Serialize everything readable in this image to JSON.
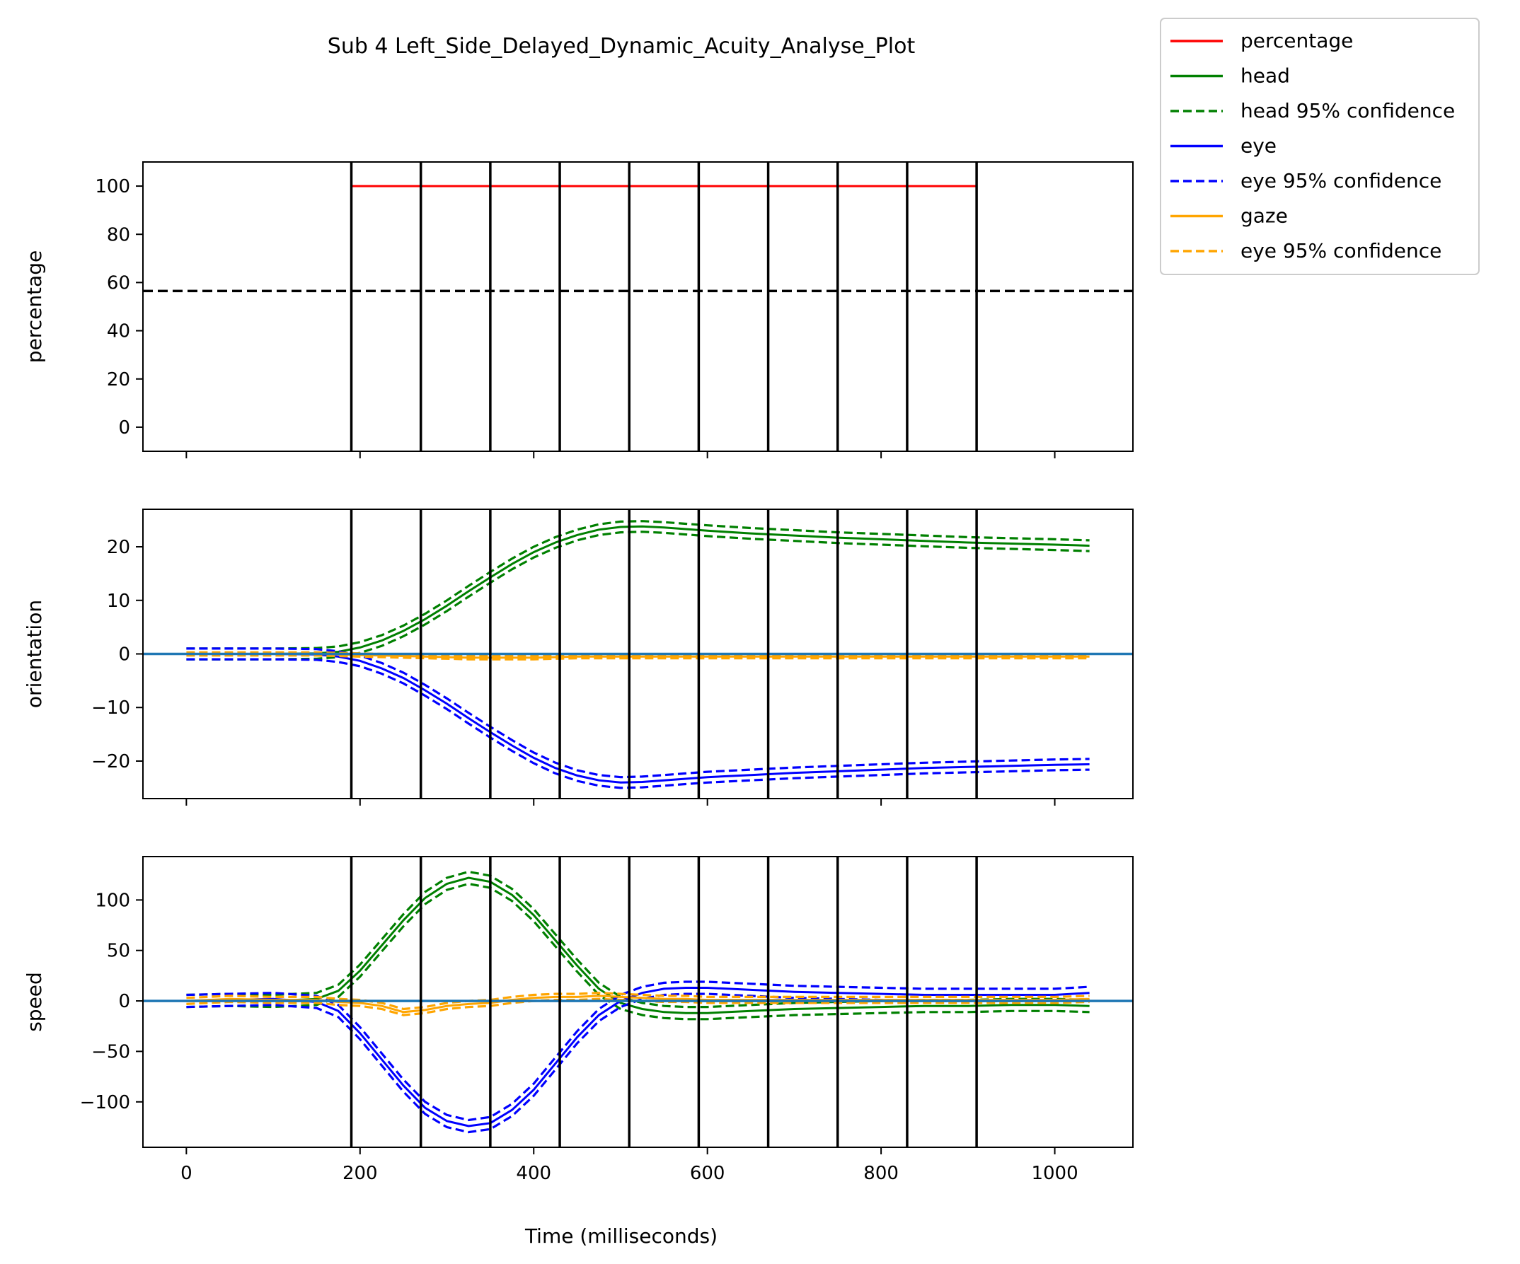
{
  "title": "Sub 4 Left_Side_Delayed_Dynamic_Acuity_Analyse_Plot",
  "xlabel": "Time (milliseconds)",
  "colors": {
    "percentage": "#ff0000",
    "head": "#008000",
    "eye": "#0000ff",
    "gaze": "#ffa500",
    "zero_line": "#1f77b4",
    "markers": "#000000"
  },
  "legend": {
    "placement": "outside-top-right",
    "entries": [
      {
        "label": "percentage",
        "color": "#ff0000",
        "style": "solid"
      },
      {
        "label": "head",
        "color": "#008000",
        "style": "solid"
      },
      {
        "label": "head 95% confidence",
        "color": "#008000",
        "style": "dashed"
      },
      {
        "label": "eye",
        "color": "#0000ff",
        "style": "solid"
      },
      {
        "label": "eye 95% confidence",
        "color": "#0000ff",
        "style": "dashed"
      },
      {
        "label": "gaze",
        "color": "#ffa500",
        "style": "solid"
      },
      {
        "label": "eye 95% confidence",
        "color": "#ffa500",
        "style": "dashed"
      }
    ]
  },
  "chart_data": [
    {
      "type": "line",
      "ylabel": "percentage",
      "xlim": [
        -50,
        1090
      ],
      "ylim": [
        -10,
        110
      ],
      "xticks": [
        0,
        200,
        400,
        600,
        800,
        1000
      ],
      "yticks": [
        0,
        20,
        40,
        60,
        80,
        100
      ],
      "ytick_labels": [
        "0",
        "20",
        "40",
        "60",
        "80",
        "100"
      ],
      "vlines": [
        190,
        270,
        350,
        430,
        510,
        590,
        670,
        750,
        830,
        910
      ],
      "hline_dashed": 56.5,
      "series": [
        {
          "name": "percentage",
          "color": "#ff0000",
          "x": [
            190,
            910
          ],
          "y": [
            100,
            100
          ]
        }
      ]
    },
    {
      "type": "line",
      "ylabel": "orientation",
      "xlim": [
        -50,
        1090
      ],
      "ylim": [
        -27,
        27
      ],
      "xticks": [
        0,
        200,
        400,
        600,
        800,
        1000
      ],
      "yticks": [
        -20,
        -10,
        0,
        10,
        20
      ],
      "ytick_labels": [
        "−20",
        "−10",
        "0",
        "10",
        "20"
      ],
      "vlines": [
        190,
        270,
        350,
        430,
        510,
        590,
        670,
        750,
        830,
        910
      ],
      "zero_line": 0,
      "x": [
        0,
        50,
        100,
        150,
        175,
        200,
        225,
        250,
        275,
        300,
        325,
        350,
        375,
        400,
        425,
        450,
        475,
        500,
        525,
        550,
        575,
        600,
        650,
        700,
        750,
        800,
        850,
        900,
        950,
        1000,
        1040
      ],
      "series": [
        {
          "name": "head",
          "color": "#008000",
          "ci": 1.0,
          "y": [
            0,
            0,
            0,
            0.1,
            0.4,
            1.2,
            2.5,
            4.3,
            6.5,
            9.0,
            11.7,
            14.3,
            16.8,
            19.0,
            20.8,
            22.2,
            23.2,
            23.7,
            23.8,
            23.6,
            23.3,
            23.0,
            22.5,
            22.1,
            21.7,
            21.4,
            21.1,
            20.8,
            20.6,
            20.4,
            20.2
          ]
        },
        {
          "name": "eye",
          "color": "#0000ff",
          "ci": 1.0,
          "y": [
            0,
            0,
            0,
            -0.1,
            -0.5,
            -1.3,
            -2.7,
            -4.5,
            -6.8,
            -9.3,
            -12.0,
            -14.6,
            -17.1,
            -19.4,
            -21.3,
            -22.7,
            -23.6,
            -24.0,
            -23.9,
            -23.6,
            -23.3,
            -23.0,
            -22.6,
            -22.2,
            -21.9,
            -21.6,
            -21.3,
            -21.1,
            -20.9,
            -20.7,
            -20.6
          ]
        },
        {
          "name": "gaze",
          "color": "#ffa500",
          "ci": 0.3,
          "y": [
            0,
            0,
            0,
            0,
            -0.1,
            -0.2,
            -0.3,
            -0.4,
            -0.5,
            -0.6,
            -0.7,
            -0.7,
            -0.7,
            -0.7,
            -0.6,
            -0.5,
            -0.5,
            -0.5,
            -0.5,
            -0.5,
            -0.5,
            -0.5,
            -0.5,
            -0.5,
            -0.5,
            -0.5,
            -0.5,
            -0.5,
            -0.5,
            -0.5,
            -0.5
          ]
        }
      ]
    },
    {
      "type": "line",
      "ylabel": "speed",
      "xlim": [
        -50,
        1090
      ],
      "ylim": [
        -145,
        143
      ],
      "xticks": [
        0,
        200,
        400,
        600,
        800,
        1000
      ],
      "xtick_labels": [
        "0",
        "200",
        "400",
        "600",
        "800",
        "1000"
      ],
      "yticks": [
        -100,
        -50,
        0,
        50,
        100
      ],
      "ytick_labels": [
        "−100",
        "−50",
        "0",
        "50",
        "100"
      ],
      "vlines": [
        190,
        270,
        350,
        430,
        510,
        590,
        670,
        750,
        830,
        910
      ],
      "zero_line": 0,
      "x": [
        0,
        50,
        100,
        150,
        175,
        200,
        225,
        250,
        275,
        300,
        325,
        350,
        375,
        400,
        425,
        450,
        475,
        500,
        525,
        550,
        575,
        600,
        650,
        700,
        750,
        800,
        850,
        900,
        950,
        1000,
        1040
      ],
      "series": [
        {
          "name": "head",
          "color": "#008000",
          "ci": 6,
          "y": [
            0,
            1,
            0,
            2,
            10,
            30,
            55,
            80,
            102,
            116,
            122,
            118,
            105,
            85,
            60,
            35,
            12,
            -2,
            -8,
            -11,
            -12,
            -12,
            -10,
            -8,
            -7,
            -6,
            -5,
            -5,
            -4,
            -4,
            -5
          ]
        },
        {
          "name": "eye",
          "color": "#0000ff",
          "ci": 6,
          "y": [
            0,
            1,
            2,
            -1,
            -10,
            -32,
            -58,
            -84,
            -106,
            -119,
            -124,
            -121,
            -108,
            -88,
            -62,
            -36,
            -14,
            0,
            8,
            12,
            13,
            13,
            11,
            9,
            8,
            7,
            6,
            6,
            6,
            6,
            8
          ]
        },
        {
          "name": "gaze",
          "color": "#ffa500",
          "ci": 3,
          "y": [
            0,
            2,
            1,
            1,
            -1,
            -2,
            -5,
            -11,
            -9,
            -5,
            -3,
            -2,
            1,
            3,
            4,
            4,
            5,
            4,
            3,
            2,
            2,
            1,
            1,
            1,
            1,
            1,
            1,
            1,
            1,
            1,
            2
          ]
        }
      ]
    }
  ]
}
